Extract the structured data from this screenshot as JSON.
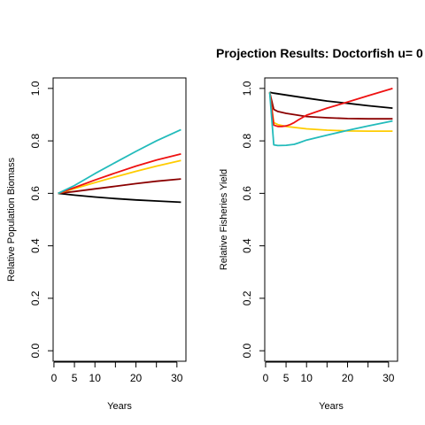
{
  "title": "Projection Results: Doctorfish u= 0",
  "colors": {
    "black": "#000000",
    "darkred": "#8B0000",
    "red": "#EE1111",
    "gold": "#FFCC00",
    "cyan": "#22BBBB"
  },
  "chart_data": [
    {
      "type": "line",
      "title": "",
      "xlabel": "Years",
      "ylabel": "Relative Population Biomass",
      "xlim": [
        1,
        31
      ],
      "ylim": [
        0,
        1
      ],
      "xticks": [
        0,
        5,
        10,
        20,
        30
      ],
      "yticks": [
        0.0,
        0.2,
        0.4,
        0.6,
        0.8,
        1.0
      ],
      "xtick_labels": [
        "0",
        "5",
        "10",
        "20",
        "30"
      ],
      "ytick_labels": [
        "0.0",
        "0.2",
        "0.4",
        "0.6",
        "0.8",
        "1.0"
      ],
      "series": [
        {
          "color": "#000000",
          "x": [
            1,
            5,
            10,
            15,
            20,
            25,
            31
          ],
          "y": [
            0.6,
            0.593,
            0.586,
            0.58,
            0.575,
            0.571,
            0.566
          ]
        },
        {
          "color": "#8B0000",
          "x": [
            1,
            5,
            10,
            15,
            20,
            25,
            31
          ],
          "y": [
            0.6,
            0.607,
            0.617,
            0.627,
            0.637,
            0.646,
            0.655
          ]
        },
        {
          "color": "#FFCC00",
          "x": [
            1,
            5,
            10,
            15,
            20,
            25,
            31
          ],
          "y": [
            0.6,
            0.618,
            0.641,
            0.663,
            0.684,
            0.704,
            0.725
          ]
        },
        {
          "color": "#EE1111",
          "x": [
            1,
            5,
            10,
            15,
            20,
            25,
            31
          ],
          "y": [
            0.6,
            0.622,
            0.651,
            0.678,
            0.704,
            0.727,
            0.75
          ]
        },
        {
          "color": "#22BBBB",
          "x": [
            1,
            5,
            10,
            15,
            20,
            25,
            31
          ],
          "y": [
            0.6,
            0.63,
            0.675,
            0.718,
            0.76,
            0.8,
            0.843
          ]
        }
      ]
    },
    {
      "type": "line",
      "title": "",
      "xlabel": "Years",
      "ylabel": "Relative Fisheries Yield",
      "xlim": [
        1,
        31
      ],
      "ylim": [
        0,
        1
      ],
      "xticks": [
        0,
        5,
        10,
        20,
        30
      ],
      "yticks": [
        0.0,
        0.2,
        0.4,
        0.6,
        0.8,
        1.0
      ],
      "xtick_labels": [
        "0",
        "5",
        "10",
        "20",
        "30"
      ],
      "ytick_labels": [
        "0.0",
        "0.2",
        "0.4",
        "0.6",
        "0.8",
        "1.0"
      ],
      "series": [
        {
          "color": "#000000",
          "x": [
            1,
            2,
            5,
            10,
            15,
            20,
            25,
            31
          ],
          "y": [
            0.985,
            0.982,
            0.975,
            0.963,
            0.952,
            0.943,
            0.934,
            0.925
          ]
        },
        {
          "color": "#8B0000",
          "x": [
            1,
            2,
            3,
            5,
            10,
            15,
            20,
            25,
            31
          ],
          "y": [
            0.985,
            0.92,
            0.912,
            0.905,
            0.893,
            0.888,
            0.885,
            0.884,
            0.884
          ]
        },
        {
          "color": "#FFCC00",
          "x": [
            1,
            2,
            3,
            5,
            10,
            15,
            20,
            25,
            31
          ],
          "y": [
            0.985,
            0.87,
            0.862,
            0.855,
            0.846,
            0.841,
            0.838,
            0.837,
            0.837
          ]
        },
        {
          "color": "#EE1111",
          "x": [
            1,
            2,
            3,
            4,
            5,
            6,
            7,
            8,
            10,
            15,
            20,
            25,
            31
          ],
          "y": [
            0.985,
            0.86,
            0.855,
            0.855,
            0.857,
            0.862,
            0.87,
            0.88,
            0.898,
            0.925,
            0.948,
            0.972,
            1.0
          ]
        },
        {
          "color": "#22BBBB",
          "x": [
            1,
            2,
            3,
            5,
            7,
            8,
            10,
            15,
            20,
            25,
            31
          ],
          "y": [
            0.985,
            0.785,
            0.782,
            0.783,
            0.787,
            0.792,
            0.803,
            0.822,
            0.84,
            0.857,
            0.876
          ]
        }
      ]
    }
  ]
}
